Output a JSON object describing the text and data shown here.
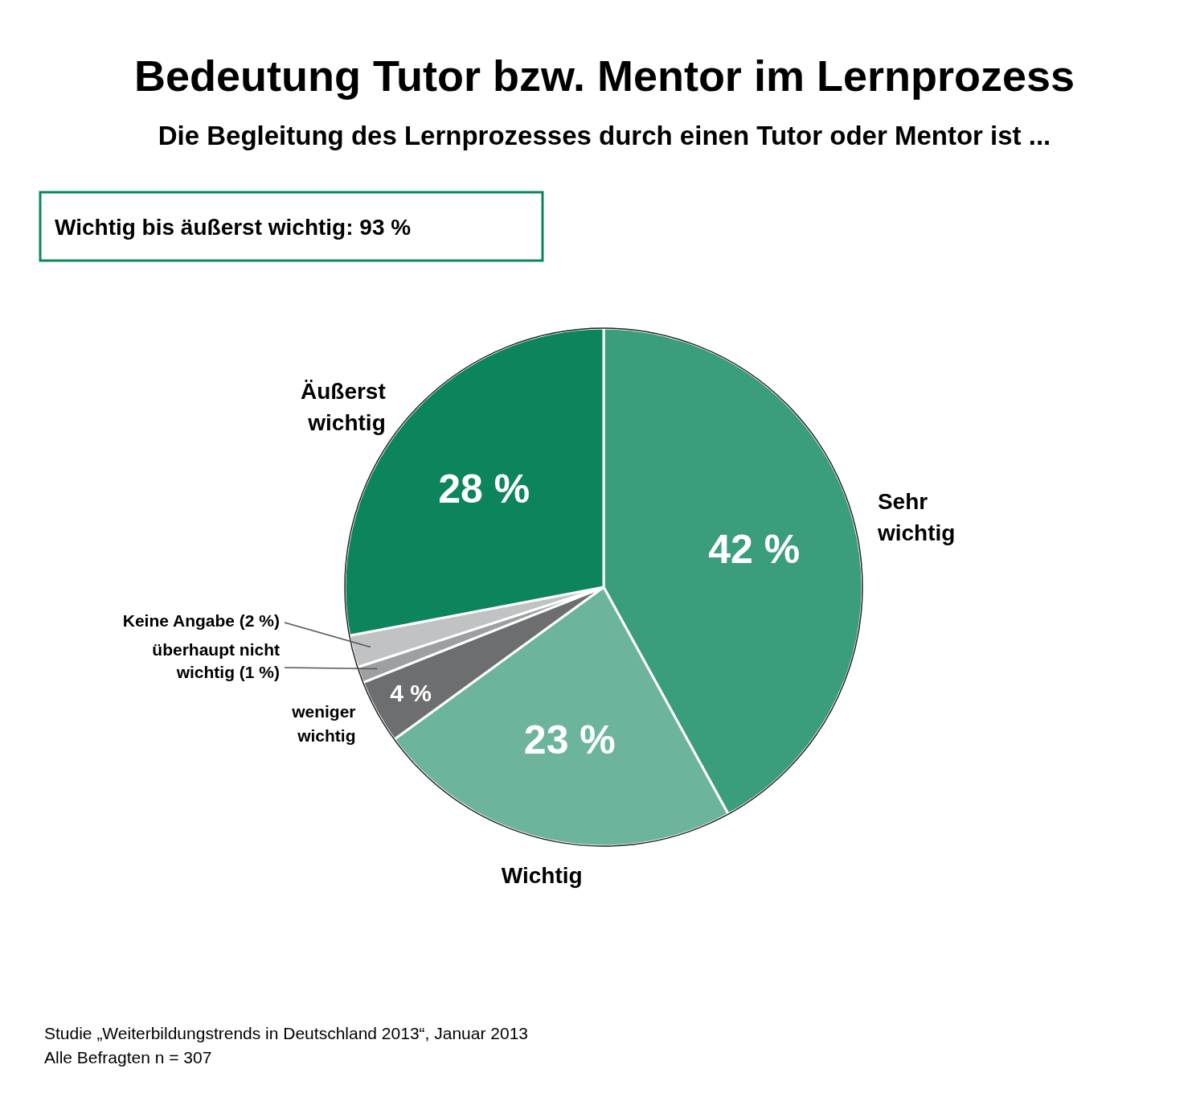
{
  "chart_data": {
    "type": "pie",
    "title": "Bedeutung Tutor bzw. Mentor im Lernprozess",
    "subtitle": "Die Begleitung des Lernprozesses durch einen Tutor oder Mentor ist ...",
    "categories": [
      "Sehr\nwichtig",
      "Wichtig",
      "weniger\nwichtig",
      "überhaupt nicht\nwichtig (1 %)",
      "Keine Angabe (2 %)",
      "Äußerst\nwichtig"
    ],
    "values": [
      42,
      23,
      4,
      1,
      2,
      28
    ],
    "value_labels": [
      "42 %",
      "23 %",
      "4 %",
      null,
      null,
      "28 %"
    ],
    "colors": [
      "#3a9d7c",
      "#6cb59c",
      "#6d6e70",
      "#9d9fa1",
      "#c1c2c4",
      "#0c855c"
    ],
    "annotations": [
      "Wichtig bis äußerst wichtig: 93 %",
      "Studie „Weiterbildungstrends in Deutschland 2013“, Januar 2013",
      "Alle Befragten n = 307"
    ]
  }
}
